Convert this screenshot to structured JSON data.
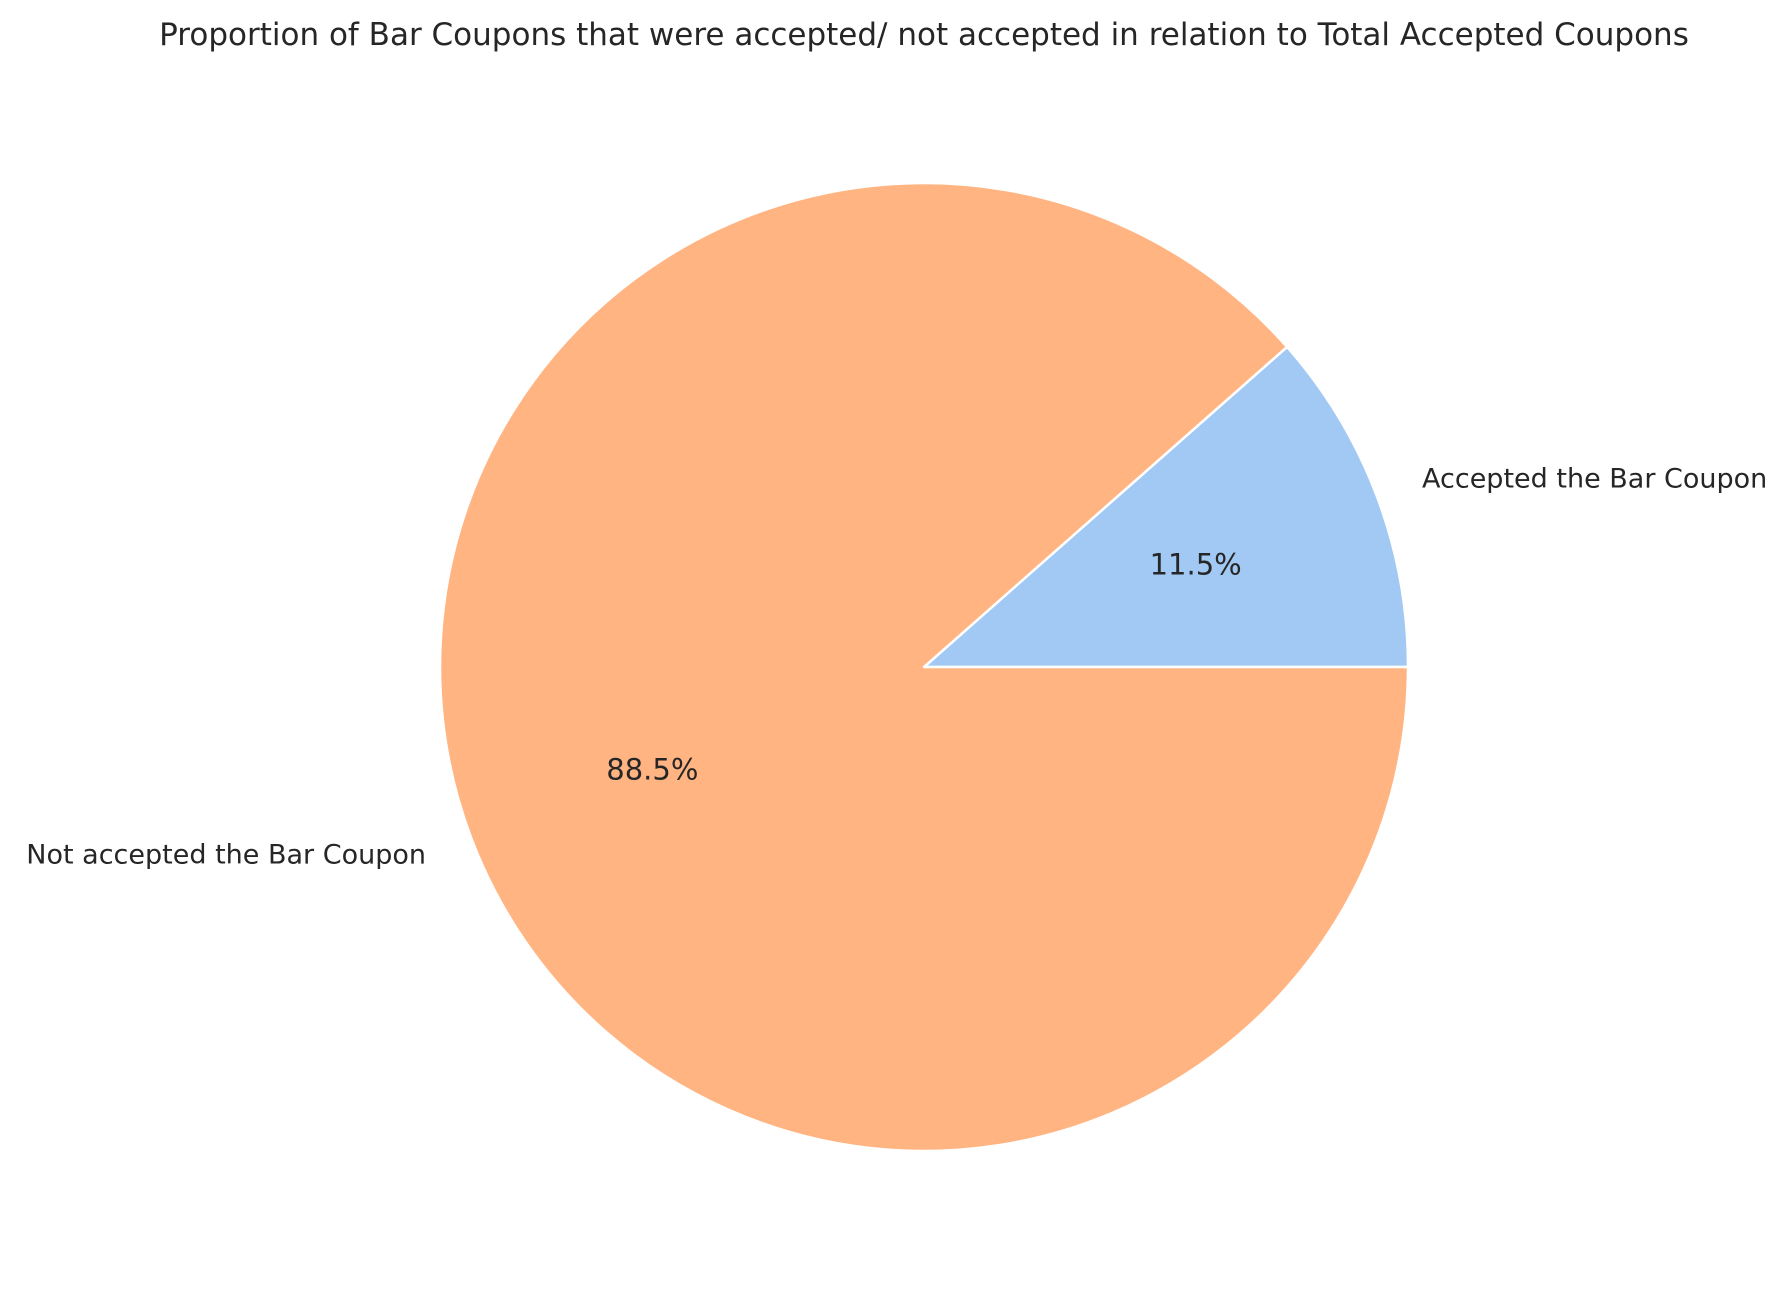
{
  "chart_data": {
    "type": "pie",
    "title": "Proportion of Bar Coupons that were accepted/ not accepted in relation to Total Accepted Coupons",
    "start_angle_deg": 0,
    "direction": "counterclockwise",
    "slices": [
      {
        "label": "Accepted the Bar Coupon",
        "value": 11.5,
        "pct_label": "11.5%",
        "color": "#a1c9f4"
      },
      {
        "label": "Not accepted the Bar Coupon",
        "value": 88.5,
        "pct_label": "88.5%",
        "color": "#ffb482"
      }
    ],
    "edge_color": "#ffffff"
  }
}
